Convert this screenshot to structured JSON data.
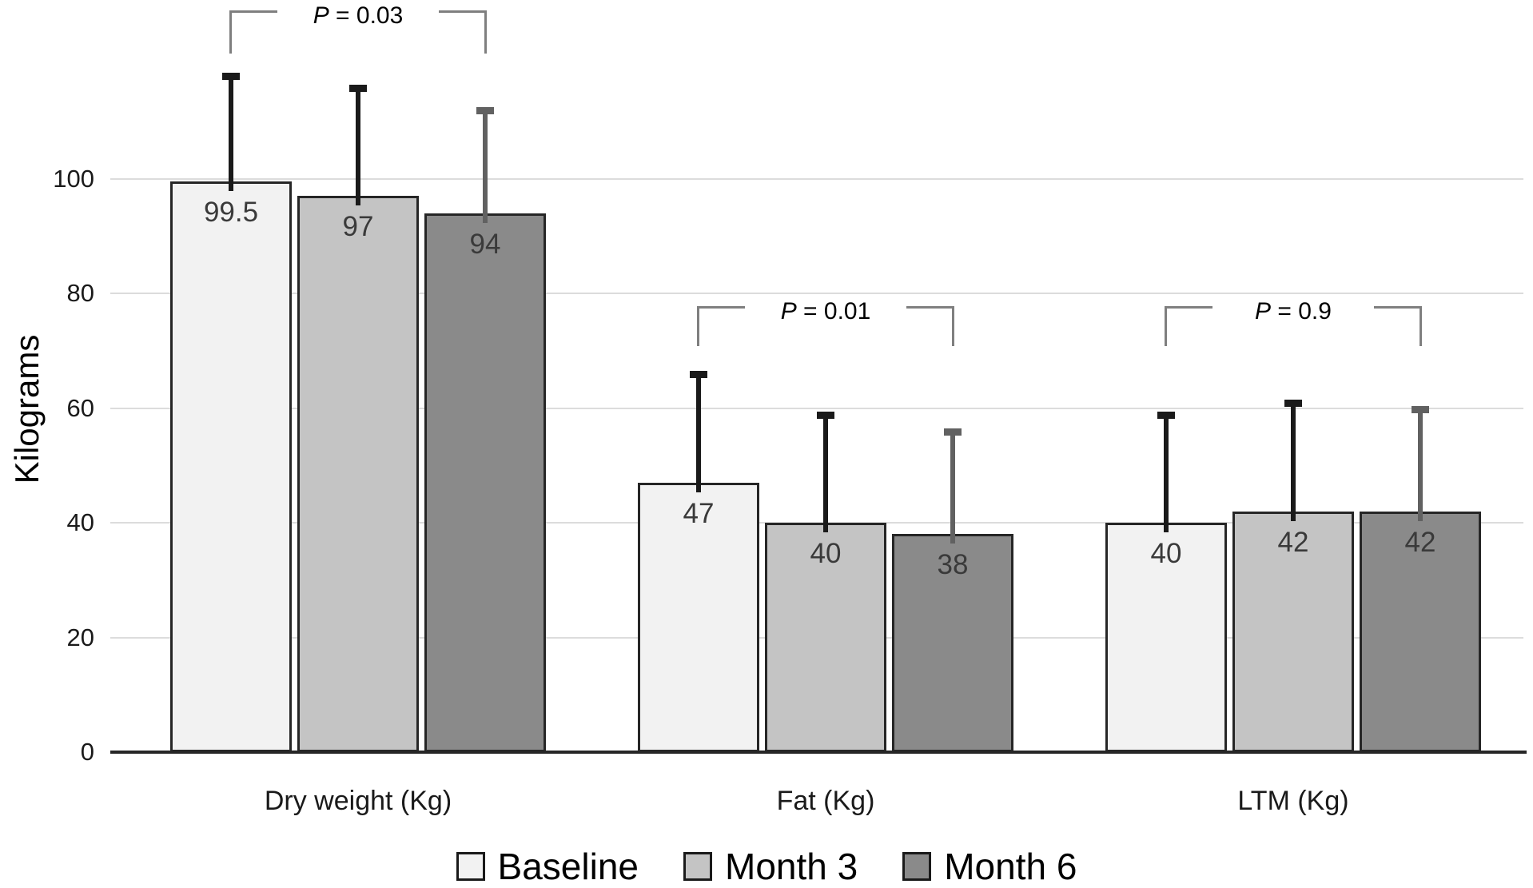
{
  "figure": {
    "background": "#ffffff"
  },
  "chart_data": {
    "type": "bar",
    "title": "",
    "ylabel": "Kilograms",
    "xlabel": "",
    "categories": [
      "Dry weight (Kg)",
      "Fat (Kg)",
      "LTM (Kg)"
    ],
    "series": [
      {
        "name": "Baseline",
        "color": "#f2f2f2",
        "values": [
          99.5,
          47,
          40
        ],
        "error_top": [
          118,
          66,
          59
        ],
        "error_color": "#1a1a1a"
      },
      {
        "name": "Month 3",
        "color": "#c4c4c4",
        "values": [
          97,
          40,
          42
        ],
        "error_top": [
          116,
          59,
          61
        ],
        "error_color": "#1a1a1a"
      },
      {
        "name": "Month 6",
        "color": "#8a8a8a",
        "values": [
          94,
          38,
          42
        ],
        "error_top": [
          112,
          56,
          60
        ],
        "error_color": "#616161"
      }
    ],
    "yticks": [
      0,
      20,
      40,
      60,
      80,
      100
    ],
    "ylim": [
      0,
      125
    ],
    "grid": "horizontal",
    "legend_position": "bottom",
    "annotations": [
      {
        "label": "P = 0.03",
        "category": "Dry weight (Kg)",
        "between": [
          "Baseline",
          "Month 6"
        ]
      },
      {
        "label": "P = 0.01",
        "category": "Fat (Kg)",
        "between": [
          "Baseline",
          "Month 6"
        ]
      },
      {
        "label": "P = 0.9",
        "category": "LTM (Kg)",
        "between": [
          "Baseline",
          "Month 6"
        ]
      }
    ],
    "colors": {
      "bar_border": "#262626",
      "grid_line": "#dcdcdc",
      "axis_line": "#262626",
      "bracket": "#7f7f7f",
      "value_label": "#3a3a3a",
      "tick_label": "#1a1a1a"
    }
  }
}
